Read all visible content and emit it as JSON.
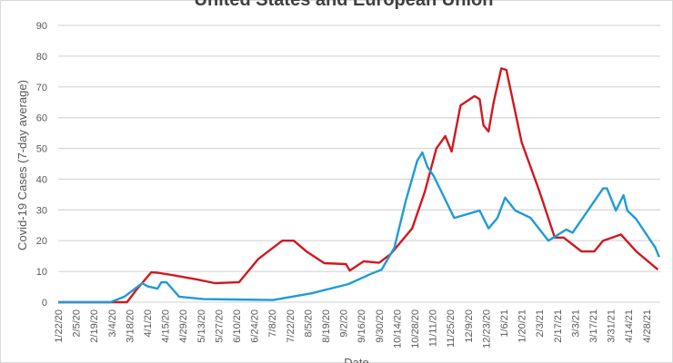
{
  "chart_data": {
    "type": "line",
    "title": "United States and European Union",
    "xlabel": "Date",
    "ylabel": "Covid-19 Cases (7-day average)",
    "ylim": [
      0,
      90
    ],
    "yticks": [
      0,
      10,
      20,
      30,
      40,
      50,
      60,
      70,
      80,
      90
    ],
    "grid": true,
    "x_unit": "days since 1/22/20",
    "xticks": [
      "1/22/20",
      "2/5/20",
      "2/19/20",
      "3/4/20",
      "3/18/20",
      "4/1/20",
      "4/15/20",
      "4/29/20",
      "5/13/20",
      "5/27/20",
      "6/10/20",
      "6/24/20",
      "7/8/20",
      "7/22/20",
      "8/5/20",
      "8/19/20",
      "9/2/20",
      "9/16/20",
      "9/30/20",
      "10/14/20",
      "10/28/20",
      "11/11/20",
      "11/25/20",
      "12/9/20",
      "12/23/20",
      "1/6/21",
      "1/20/21",
      "2/3/21",
      "2/17/21",
      "3/3/21",
      "3/17/21",
      "3/31/21",
      "4/14/21",
      "4/28/21"
    ],
    "series": [
      {
        "color": "#d0191f",
        "x": [
          0,
          54,
          61,
          73,
          78,
          90,
          109,
          123,
          142,
          157,
          176,
          185,
          195,
          209,
          226,
          229,
          240,
          252,
          261,
          278,
          288,
          297,
          304,
          309,
          316,
          327,
          331,
          334,
          338,
          342,
          348,
          352,
          364,
          378,
          390,
          397,
          411,
          421,
          428,
          442,
          454,
          471
        ],
        "values": [
          0,
          0,
          3.8,
          9.7,
          9.6,
          8.8,
          7.4,
          6.2,
          6.5,
          14,
          20,
          20,
          16.5,
          12.7,
          12.4,
          10.3,
          13.3,
          12.8,
          15.6,
          24,
          36,
          50,
          54,
          49,
          64,
          67,
          66,
          57.5,
          55.5,
          65,
          76,
          75.5,
          52,
          36,
          21,
          21,
          16.5,
          16.5,
          20,
          22,
          16.5,
          10.6
        ]
      },
      {
        "color": "#1f9bd7",
        "x": [
          0,
          41,
          52,
          66,
          70,
          78,
          81,
          85,
          95,
          114,
          169,
          199,
          228,
          245,
          254,
          264,
          273,
          282,
          286,
          290,
          295,
          311,
          331,
          338,
          345,
          351,
          359,
          371,
          385,
          399,
          404,
          428,
          431,
          438,
          444,
          447,
          454,
          469,
          472
        ],
        "values": [
          0,
          0,
          1.8,
          6.2,
          5.2,
          4.4,
          6.5,
          6.5,
          1.8,
          1.0,
          0.7,
          2.9,
          5.9,
          9.1,
          10.6,
          17.7,
          33,
          46,
          48.7,
          44,
          41,
          27.4,
          29.8,
          24,
          27.4,
          34,
          29.8,
          27.4,
          20,
          23.6,
          22.6,
          37,
          37,
          29.8,
          34.8,
          29.8,
          27,
          17.7,
          14.7
        ]
      }
    ]
  }
}
